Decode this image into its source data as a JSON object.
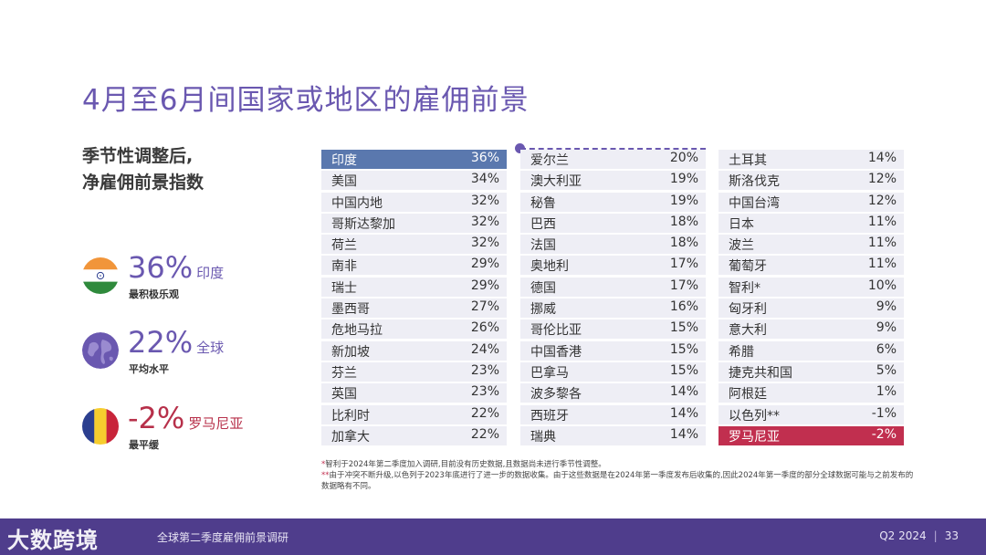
{
  "title": "4月至6月间国家或地区的雇佣前景",
  "subtitle_line1": "季节性调整后,",
  "subtitle_line2": "净雇佣前景指数",
  "stats": [
    {
      "value": "36%",
      "name": "印度",
      "desc": "最积极乐观",
      "icon": "india-flag-icon"
    },
    {
      "value": "22%",
      "name": "全球",
      "desc": "平均水平",
      "icon": "globe-icon"
    },
    {
      "value": "-2%",
      "name": "罗马尼亚",
      "desc": "最平缓",
      "icon": "romania-flag-icon"
    }
  ],
  "columns": [
    [
      {
        "name": "印度",
        "value": "36%"
      },
      {
        "name": "美国",
        "value": "34%"
      },
      {
        "name": "中国内地",
        "value": "32%"
      },
      {
        "name": "哥斯达黎加",
        "value": "32%"
      },
      {
        "name": "荷兰",
        "value": "32%"
      },
      {
        "name": "南非",
        "value": "29%"
      },
      {
        "name": "瑞士",
        "value": "29%"
      },
      {
        "name": "墨西哥",
        "value": "27%"
      },
      {
        "name": "危地马拉",
        "value": "26%"
      },
      {
        "name": "新加坡",
        "value": "24%"
      },
      {
        "name": "芬兰",
        "value": "23%"
      },
      {
        "name": "英国",
        "value": "23%"
      },
      {
        "name": "比利时",
        "value": "22%"
      },
      {
        "name": "加拿大",
        "value": "22%"
      }
    ],
    [
      {
        "name": "爱尔兰",
        "value": "20%"
      },
      {
        "name": "澳大利亚",
        "value": "19%"
      },
      {
        "name": "秘鲁",
        "value": "19%"
      },
      {
        "name": "巴西",
        "value": "18%"
      },
      {
        "name": "法国",
        "value": "18%"
      },
      {
        "name": "奥地利",
        "value": "17%"
      },
      {
        "name": "德国",
        "value": "17%"
      },
      {
        "name": "挪威",
        "value": "16%"
      },
      {
        "name": "哥伦比亚",
        "value": "15%"
      },
      {
        "name": "中国香港",
        "value": "15%"
      },
      {
        "name": "巴拿马",
        "value": "15%"
      },
      {
        "name": "波多黎各",
        "value": "14%"
      },
      {
        "name": "西班牙",
        "value": "14%"
      },
      {
        "name": "瑞典",
        "value": "14%"
      }
    ],
    [
      {
        "name": "土耳其",
        "value": "14%"
      },
      {
        "name": "斯洛伐克",
        "value": "12%"
      },
      {
        "name": "中国台湾",
        "value": "12%"
      },
      {
        "name": "日本",
        "value": "11%"
      },
      {
        "name": "波兰",
        "value": "11%"
      },
      {
        "name": "葡萄牙",
        "value": "11%"
      },
      {
        "name": "智利*",
        "value": "10%"
      },
      {
        "name": "匈牙利",
        "value": "9%"
      },
      {
        "name": "意大利",
        "value": "9%"
      },
      {
        "name": "希腊",
        "value": "6%"
      },
      {
        "name": "捷克共和国",
        "value": "5%"
      },
      {
        "name": "阿根廷",
        "value": "1%"
      },
      {
        "name": "以色列**",
        "value": "-1%"
      },
      {
        "name": "罗马尼亚",
        "value": "-2%"
      }
    ]
  ],
  "colors": {
    "accent": "#6a58b0",
    "highest": "#5a78ae",
    "lowest": "#c12f4f",
    "row_bg": "#eeeef5",
    "footer": "#4f3d8c"
  },
  "note1_mark": "*",
  "note1": "智利于2024年第二季度加入调研,目前没有历史数据,且数据尚未进行季节性调整。",
  "note2_mark": "**",
  "note2": "由于冲突不断升级,以色列于2023年底进行了进一步的数据收集。由于这些数据是在2024年第一季度发布后收集的,因此2024年第一季度的部分全球数据可能与之前发布的数据略有不同。",
  "footer": {
    "logo": "大数跨境",
    "report": "全球第二季度雇佣前景调研",
    "quarter": "Q2 2024",
    "separator": "|",
    "page": "33"
  }
}
